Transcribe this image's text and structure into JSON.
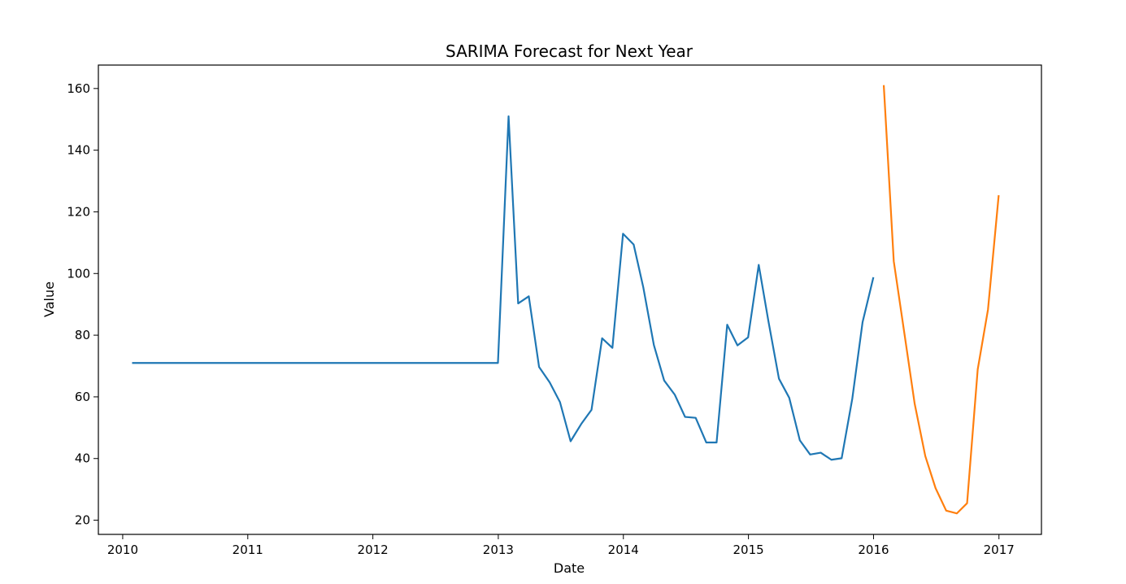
{
  "chart_data": {
    "type": "line",
    "title": "SARIMA Forecast for Next Year",
    "xlabel": "Date",
    "ylabel": "Value",
    "xlim": [
      "2009-10-22",
      "2017-05-05"
    ],
    "ylim": [
      15.4,
      167.6
    ],
    "x_ticks": [
      "2010",
      "2011",
      "2012",
      "2013",
      "2014",
      "2015",
      "2016",
      "2017"
    ],
    "y_ticks": [
      20,
      40,
      60,
      80,
      100,
      120,
      140,
      160
    ],
    "grid": false,
    "legend": "none",
    "series": [
      {
        "color": "#1f77b4",
        "points": [
          [
            "2010-01-31",
            71
          ],
          [
            "2010-02-28",
            71
          ],
          [
            "2010-03-31",
            71
          ],
          [
            "2010-04-30",
            71
          ],
          [
            "2010-05-31",
            71
          ],
          [
            "2010-06-30",
            71
          ],
          [
            "2010-07-31",
            71
          ],
          [
            "2010-08-31",
            71
          ],
          [
            "2010-09-30",
            71
          ],
          [
            "2010-10-31",
            71
          ],
          [
            "2010-11-30",
            71
          ],
          [
            "2010-12-31",
            71
          ],
          [
            "2011-01-31",
            71
          ],
          [
            "2011-02-28",
            71
          ],
          [
            "2011-03-31",
            71
          ],
          [
            "2011-04-30",
            71
          ],
          [
            "2011-05-31",
            71
          ],
          [
            "2011-06-30",
            71
          ],
          [
            "2011-07-31",
            71
          ],
          [
            "2011-08-31",
            71
          ],
          [
            "2011-09-30",
            71
          ],
          [
            "2011-10-31",
            71
          ],
          [
            "2011-11-30",
            71
          ],
          [
            "2011-12-31",
            71
          ],
          [
            "2012-01-31",
            71
          ],
          [
            "2012-02-29",
            71
          ],
          [
            "2012-03-31",
            71
          ],
          [
            "2012-04-30",
            71
          ],
          [
            "2012-05-31",
            71
          ],
          [
            "2012-06-30",
            71
          ],
          [
            "2012-07-31",
            71
          ],
          [
            "2012-08-31",
            71
          ],
          [
            "2012-09-30",
            71
          ],
          [
            "2012-10-31",
            71
          ],
          [
            "2012-11-30",
            71
          ],
          [
            "2012-12-31",
            71
          ],
          [
            "2013-01-31",
            151
          ],
          [
            "2013-02-28",
            90.3
          ],
          [
            "2013-03-31",
            92.6
          ],
          [
            "2013-04-30",
            69.7
          ],
          [
            "2013-05-31",
            64.7
          ],
          [
            "2013-06-30",
            58.3
          ],
          [
            "2013-07-31",
            45.6
          ],
          [
            "2013-08-31",
            51.2
          ],
          [
            "2013-09-30",
            55.8
          ],
          [
            "2013-10-31",
            79
          ],
          [
            "2013-11-30",
            75.9
          ],
          [
            "2013-12-31",
            112.9
          ],
          [
            "2014-01-31",
            109.4
          ],
          [
            "2014-02-28",
            95.6
          ],
          [
            "2014-03-31",
            76.8
          ],
          [
            "2014-04-30",
            65.3
          ],
          [
            "2014-05-31",
            60.7
          ],
          [
            "2014-06-30",
            53.5
          ],
          [
            "2014-07-31",
            53.2
          ],
          [
            "2014-08-31",
            45.2
          ],
          [
            "2014-09-30",
            45.2
          ],
          [
            "2014-10-31",
            83.4
          ],
          [
            "2014-11-30",
            76.7
          ],
          [
            "2014-12-31",
            79.3
          ],
          [
            "2015-01-31",
            102.8
          ],
          [
            "2015-02-28",
            84.7
          ],
          [
            "2015-03-31",
            65.9
          ],
          [
            "2015-04-30",
            59.7
          ],
          [
            "2015-05-31",
            45.9
          ],
          [
            "2015-06-30",
            41.3
          ],
          [
            "2015-07-31",
            41.9
          ],
          [
            "2015-08-31",
            39.6
          ],
          [
            "2015-09-30",
            40.1
          ],
          [
            "2015-10-31",
            59.4
          ],
          [
            "2015-11-30",
            84.2
          ],
          [
            "2015-12-31",
            98.5
          ]
        ]
      },
      {
        "color": "#ff7f0e",
        "points": [
          [
            "2016-01-31",
            160.8
          ],
          [
            "2016-02-29",
            104
          ],
          [
            "2016-03-31",
            80.6
          ],
          [
            "2016-04-30",
            57.8
          ],
          [
            "2016-05-31",
            40.8
          ],
          [
            "2016-06-30",
            30.4
          ],
          [
            "2016-07-31",
            23.1
          ],
          [
            "2016-08-31",
            22.2
          ],
          [
            "2016-09-30",
            25.5
          ],
          [
            "2016-10-31",
            68.9
          ],
          [
            "2016-11-30",
            88.3
          ],
          [
            "2016-12-31",
            125.1
          ]
        ]
      }
    ]
  }
}
